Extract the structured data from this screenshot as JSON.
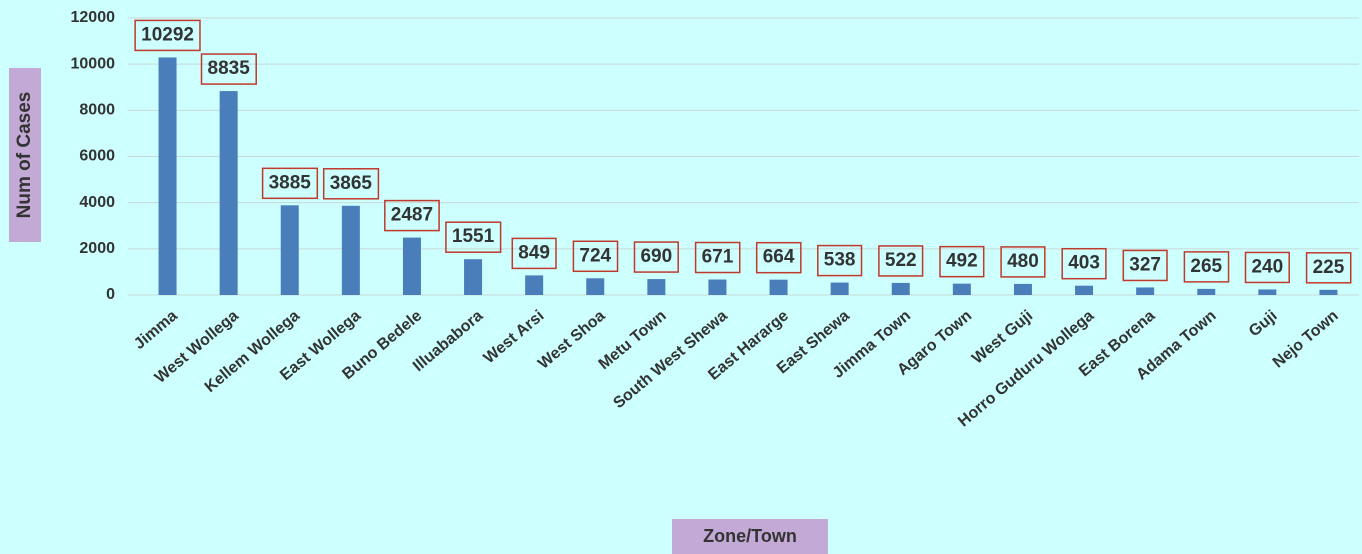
{
  "chart_data": {
    "type": "bar",
    "categories": [
      "Jimma",
      "West Wollega",
      "Kellem Wollega",
      "East Wollega",
      "Buno Bedele",
      "Illuababora",
      "West Arsi",
      "West Shoa",
      "Metu Town",
      "South West Shewa",
      "East Hararge",
      "East Shewa",
      "Jimma Town",
      "Agaro Town",
      "West Guji",
      "Horro Guduru Wollega",
      "East Borena",
      "Adama Town",
      "Guji",
      "Nejo Town"
    ],
    "values": [
      10292,
      8835,
      3885,
      3865,
      2487,
      1551,
      849,
      724,
      690,
      671,
      664,
      538,
      522,
      492,
      480,
      403,
      327,
      265,
      240,
      225
    ],
    "color": "#4a7ebb",
    "ylim": [
      0,
      12000
    ],
    "yticks": [
      0,
      2000,
      4000,
      6000,
      8000,
      10000,
      12000
    ],
    "grid": true,
    "y_label": "Num of Cases",
    "x_label": "Zone/Town"
  }
}
